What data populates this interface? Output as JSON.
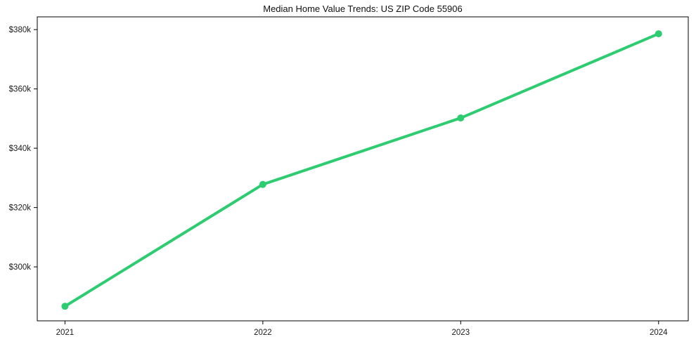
{
  "chart_data": {
    "type": "line",
    "title": "Median Home Value Trends: US ZIP Code 55906",
    "series_name": "Median home value",
    "x": [
      2021,
      2022,
      2023,
      2024
    ],
    "values": [
      286700,
      327800,
      350200,
      378600
    ],
    "x_tick_labels": [
      "2021",
      "2022",
      "2023",
      "2024"
    ],
    "y_ticks": [
      {
        "value": 300000,
        "label": "$300k"
      },
      {
        "value": 320000,
        "label": "$320k"
      },
      {
        "value": 340000,
        "label": "$340k"
      },
      {
        "value": 360000,
        "label": "$360k"
      },
      {
        "value": 380000,
        "label": "$380k"
      }
    ],
    "xlim": [
      2020.86,
      2024.15
    ],
    "ylim": [
      281800,
      384300
    ],
    "xlabel": "",
    "ylabel": "",
    "grid": false,
    "legend": "none",
    "line_color": "#2ecc71",
    "marker_color": "#2ecc71",
    "axis_color": "#000000",
    "text_color": "#1a1a1a",
    "background": "#ffffff"
  }
}
